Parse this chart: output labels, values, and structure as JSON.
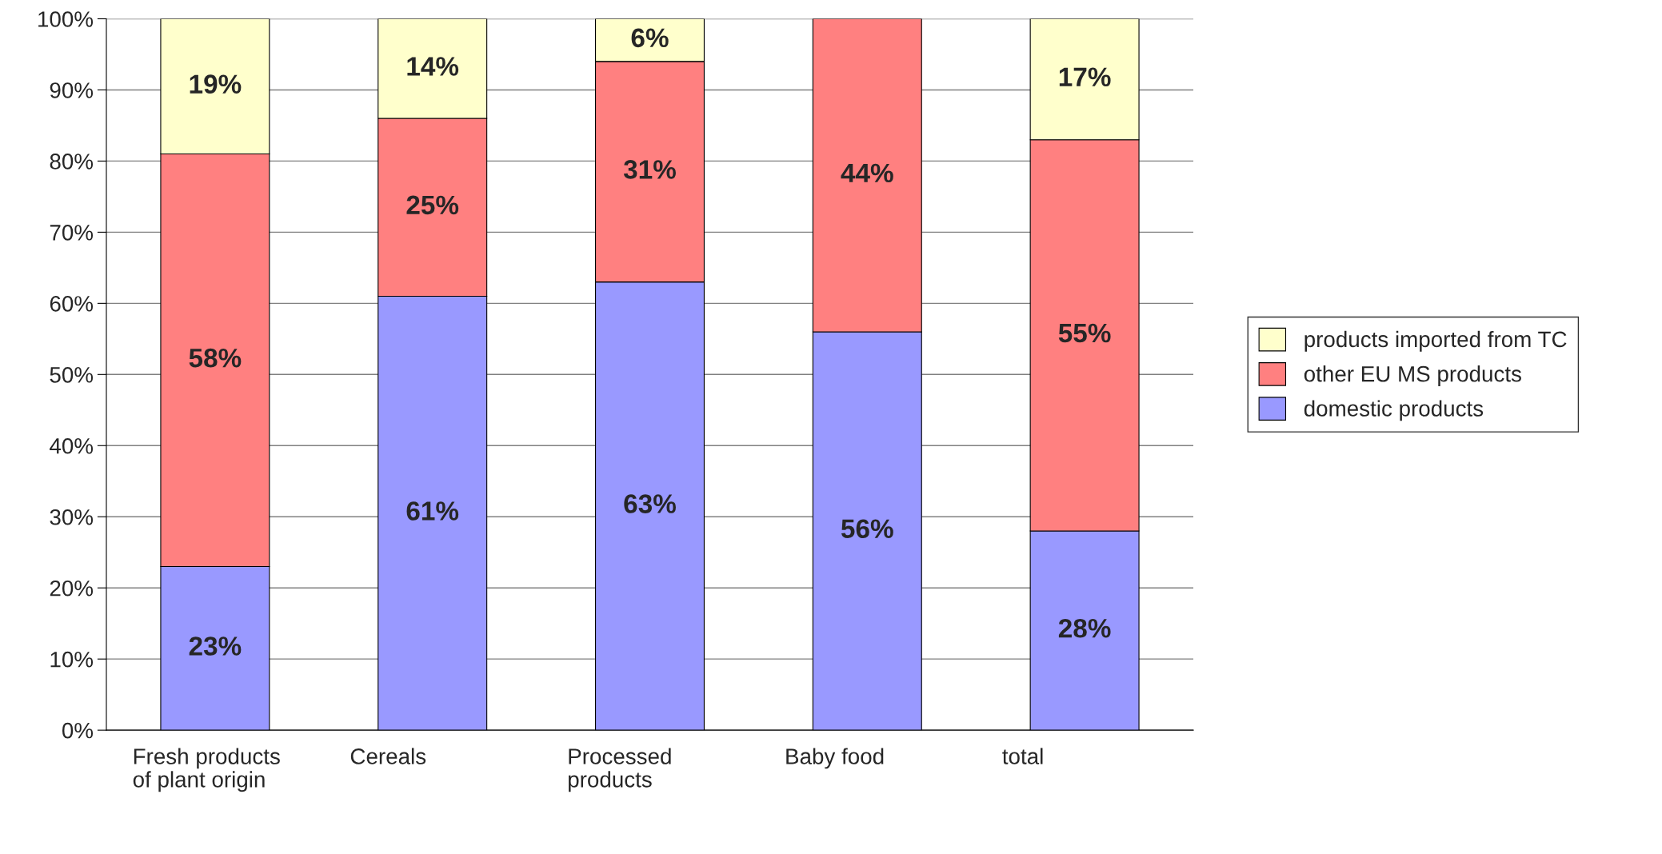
{
  "chart_data": {
    "type": "bar",
    "stacked": true,
    "categories": [
      "Fresh products of plant origin",
      "Cereals",
      "Processed products",
      "Baby food",
      "total"
    ],
    "series": [
      {
        "name": "domestic products",
        "color": "#9999ff",
        "values": [
          23,
          61,
          63,
          56,
          28
        ],
        "value_labels": [
          "23%",
          "61%",
          "63%",
          "56%",
          "28%"
        ]
      },
      {
        "name": "other EU MS products",
        "color": "#ff8080",
        "values": [
          58,
          25,
          31,
          44,
          55
        ],
        "value_labels": [
          "58%",
          "25%",
          "31%",
          "44%",
          "55%"
        ]
      },
      {
        "name": "products imported from TC",
        "color": "#ffffcc",
        "values": [
          19,
          14,
          6,
          null,
          17
        ],
        "value_labels": [
          "19%",
          "14%",
          "6%",
          null,
          "17%"
        ]
      }
    ],
    "ylim": [
      0,
      100
    ],
    "yticks": [
      {
        "value": 0,
        "label": "0%"
      },
      {
        "value": 10,
        "label": "10%"
      },
      {
        "value": 20,
        "label": "20%"
      },
      {
        "value": 30,
        "label": "30%"
      },
      {
        "value": 40,
        "label": "40%"
      },
      {
        "value": 50,
        "label": "50%"
      },
      {
        "value": 60,
        "label": "60%"
      },
      {
        "value": 70,
        "label": "70%"
      },
      {
        "value": 80,
        "label": "80%"
      },
      {
        "value": 90,
        "label": "90%"
      },
      {
        "value": 100,
        "label": "100%"
      }
    ],
    "grid": "y",
    "legend": "right"
  }
}
